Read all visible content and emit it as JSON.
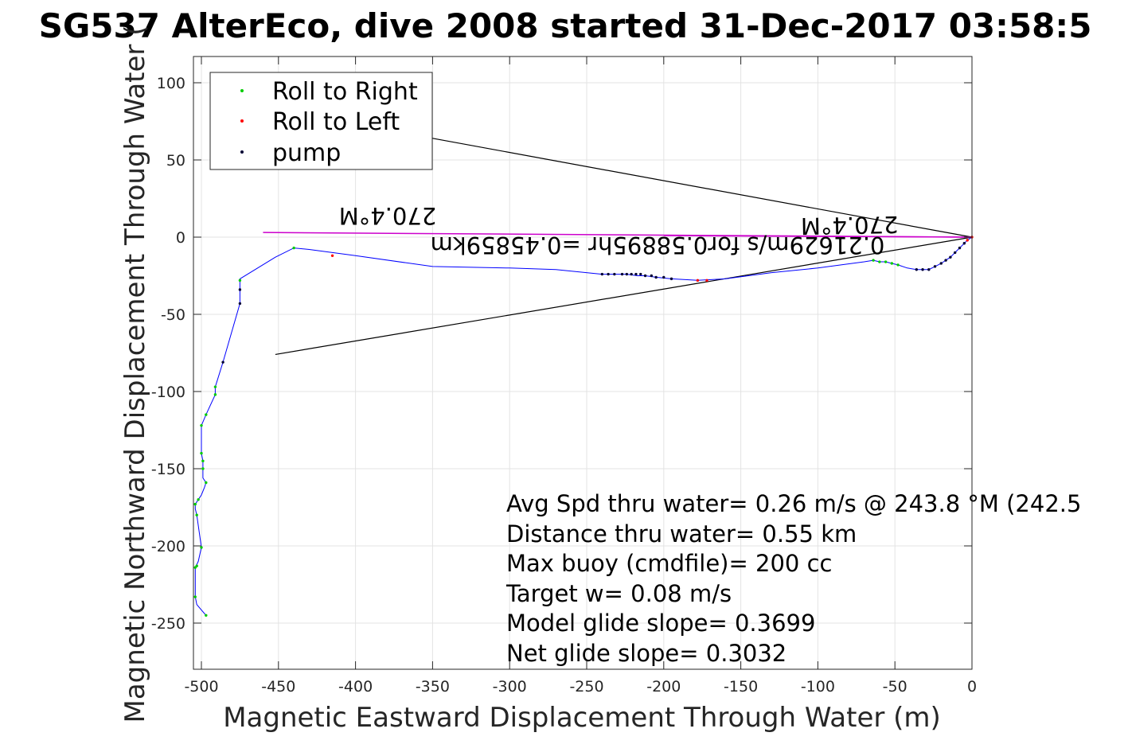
{
  "chart_data": {
    "type": "scatter",
    "title": "SG537 AlterEco, dive 2008 started 31-Dec-2017 03:58:5",
    "xlabel": "Magnetic Eastward Displacement Through Water (m)",
    "ylabel": "Magnetic Northward Displacement Through Water (",
    "xlim": [
      -505,
      0
    ],
    "ylim": [
      -280,
      118
    ],
    "xticks": [
      -500,
      -450,
      -400,
      -350,
      -300,
      -250,
      -200,
      -150,
      -100,
      -50,
      0
    ],
    "xtick_labels": [
      "-500",
      "-450",
      "-400",
      "-350",
      "-300",
      "-250",
      "-200",
      "-150",
      "-100",
      "-50",
      "0"
    ],
    "yticks": [
      100,
      50,
      0,
      -50,
      -100,
      -150,
      -200,
      -250
    ],
    "ytick_labels": [
      "100",
      "50",
      "0",
      "-50",
      "-100",
      "-150",
      "-200",
      "-250"
    ],
    "grid": true,
    "legend_position": "top-left",
    "legend": [
      {
        "label": "Roll to Right",
        "color": "#00cc00"
      },
      {
        "label": "Roll to Left",
        "color": "#ff0000"
      },
      {
        "label": "pump",
        "color": "#000033"
      }
    ],
    "track_color": "#0000ff",
    "track": [
      [
        0,
        0
      ],
      [
        -3,
        -2
      ],
      [
        -5,
        -4
      ],
      [
        -8,
        -7
      ],
      [
        -11,
        -10
      ],
      [
        -14,
        -13
      ],
      [
        -17,
        -15
      ],
      [
        -20,
        -17
      ],
      [
        -24,
        -19
      ],
      [
        -28,
        -21
      ],
      [
        -32,
        -21
      ],
      [
        -36,
        -21
      ],
      [
        -42,
        -20
      ],
      [
        -48,
        -18
      ],
      [
        -52,
        -17
      ],
      [
        -56,
        -16
      ],
      [
        -60,
        -16
      ],
      [
        -64,
        -15
      ],
      [
        -70,
        -16
      ],
      [
        -100,
        -20
      ],
      [
        -130,
        -23
      ],
      [
        -160,
        -27
      ],
      [
        -178,
        -28
      ],
      [
        -195,
        -27
      ],
      [
        -205,
        -26
      ],
      [
        -212,
        -25
      ],
      [
        -217,
        -25
      ],
      [
        -224,
        -24
      ],
      [
        -232,
        -24
      ],
      [
        -240,
        -24
      ],
      [
        -270,
        -21
      ],
      [
        -300,
        -20
      ],
      [
        -350,
        -19
      ],
      [
        -400,
        -12
      ],
      [
        -430,
        -8
      ],
      [
        -440,
        -7
      ],
      [
        -452,
        -13
      ],
      [
        -475,
        -27
      ],
      [
        -475,
        -34
      ],
      [
        -475,
        -43
      ],
      [
        -486,
        -81
      ],
      [
        -491,
        -97
      ],
      [
        -491,
        -102
      ],
      [
        -497,
        -115
      ],
      [
        -500,
        -122
      ],
      [
        -500,
        -140
      ],
      [
        -499,
        -145
      ],
      [
        -499,
        -150
      ],
      [
        -499,
        -156
      ],
      [
        -497,
        -159
      ],
      [
        -498,
        -162
      ],
      [
        -500,
        -167
      ],
      [
        -502,
        -170
      ],
      [
        -504,
        -173
      ],
      [
        -504,
        -176
      ],
      [
        -503,
        -180
      ],
      [
        -500,
        -201
      ],
      [
        -502,
        -210
      ],
      [
        -504,
        -214
      ],
      [
        -504,
        -233
      ],
      [
        -503,
        -238
      ],
      [
        -497,
        -245
      ]
    ],
    "series": [
      {
        "name": "Roll to Right",
        "color": "#00cc00",
        "points": [
          [
            -60,
            -16
          ],
          [
            -56,
            -16
          ],
          [
            -52,
            -17
          ],
          [
            -48,
            -18
          ],
          [
            -64,
            -15
          ],
          [
            -440,
            -7
          ],
          [
            -475,
            -28
          ],
          [
            -491,
            -97
          ],
          [
            -491,
            -102
          ],
          [
            -497,
            -115
          ],
          [
            -500,
            -122
          ],
          [
            -500,
            -140
          ],
          [
            -499,
            -145
          ],
          [
            -499,
            -150
          ],
          [
            -497,
            -159
          ],
          [
            -502,
            -170
          ],
          [
            -504,
            -173
          ],
          [
            -503,
            -180
          ],
          [
            -500,
            -201
          ],
          [
            -504,
            -214
          ],
          [
            -503,
            -213
          ],
          [
            -504,
            -233
          ],
          [
            -497,
            -245
          ]
        ]
      },
      {
        "name": "Roll to Left",
        "color": "#ff0000",
        "points": [
          [
            0,
            0
          ],
          [
            -3,
            -2
          ],
          [
            -178,
            -28
          ],
          [
            -172,
            -28
          ],
          [
            -415,
            -12
          ]
        ]
      },
      {
        "name": "pump",
        "color": "#000033",
        "points": [
          [
            -5,
            -4
          ],
          [
            -8,
            -7
          ],
          [
            -11,
            -10
          ],
          [
            -14,
            -13
          ],
          [
            -17,
            -15
          ],
          [
            -20,
            -17
          ],
          [
            -24,
            -19
          ],
          [
            -28,
            -21
          ],
          [
            -32,
            -21
          ],
          [
            -36,
            -21
          ],
          [
            -195,
            -27
          ],
          [
            -200,
            -26
          ],
          [
            -205,
            -26
          ],
          [
            -208,
            -25
          ],
          [
            -212,
            -25
          ],
          [
            -215,
            -24
          ],
          [
            -218,
            -24
          ],
          [
            -221,
            -24
          ],
          [
            -224,
            -24
          ],
          [
            -227,
            -24
          ],
          [
            -232,
            -24
          ],
          [
            -236,
            -24
          ],
          [
            -240,
            -24
          ],
          [
            -475,
            -34
          ],
          [
            -475,
            -43
          ],
          [
            -486,
            -81
          ]
        ]
      }
    ],
    "magenta_lines": [
      {
        "from": [
          0,
          0
        ],
        "to": [
          -460,
          3
        ],
        "color": "#cc00cc"
      },
      {
        "from": [
          0,
          0
        ],
        "to": [
          -200,
          1
        ],
        "color": "#cc00cc"
      }
    ],
    "black_lines": [
      {
        "from": [
          0,
          0
        ],
        "to": [
          -350,
          64
        ],
        "color": "#000000"
      },
      {
        "from": [
          0,
          0
        ],
        "to": [
          -452,
          -76
        ],
        "color": "#000000"
      }
    ],
    "annotations": {
      "heading_left": "270.4°M",
      "heading_right": "270.4°M",
      "speed_line": "0.21629m/s for0.58895hr =0.45859km"
    },
    "stats": [
      "Avg Spd thru water=  0.26 m/s @ 243.8 °M (242.5",
      "Distance thru water=  0.55 km",
      "Max buoy (cmdfile)= 200 cc",
      "Target w= 0.08 m/s",
      "Model glide slope= 0.3699",
      "Net glide slope= 0.3032"
    ]
  }
}
